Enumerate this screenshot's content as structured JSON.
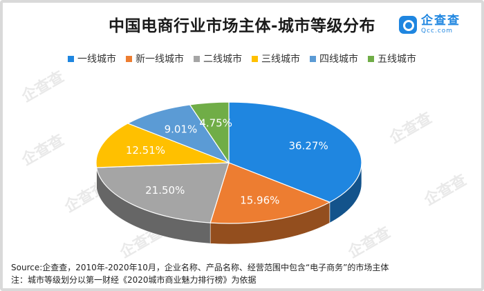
{
  "header": {
    "title": "中国电商行业市场主体-城市等级分布",
    "logo_cn": "企查查",
    "logo_en": "Qcc.com"
  },
  "watermark_text": "企查查",
  "chart_data": {
    "type": "pie",
    "title": "中国电商行业市场主体-城市等级分布",
    "legend_position": "top",
    "categories": [
      "一线城市",
      "新一线城市",
      "二线城市",
      "三线城市",
      "四线城市",
      "五线城市"
    ],
    "values": [
      36.27,
      15.96,
      21.5,
      12.51,
      9.01,
      4.75
    ],
    "labels": [
      "36.27%",
      "15.96%",
      "21.50%",
      "12.51%",
      "9.01%",
      "4.75%"
    ],
    "colors": [
      "#1f86e0",
      "#ed7d31",
      "#a5a5a5",
      "#ffc000",
      "#5b9bd5",
      "#70ad47"
    ],
    "label_colors": [
      "#ffffff",
      "#ffffff",
      "#ffffff",
      "#ffffff",
      "#ffffff",
      "#ffffff"
    ]
  },
  "footnote": {
    "source": "Source:企查查，2010年-2020年10月，企业名称、产品名称、经营范围中包含“电子商务”的市场主体",
    "note": "注：城市等级划分以第一财经《2020城市商业魅力排行榜》为依据"
  }
}
